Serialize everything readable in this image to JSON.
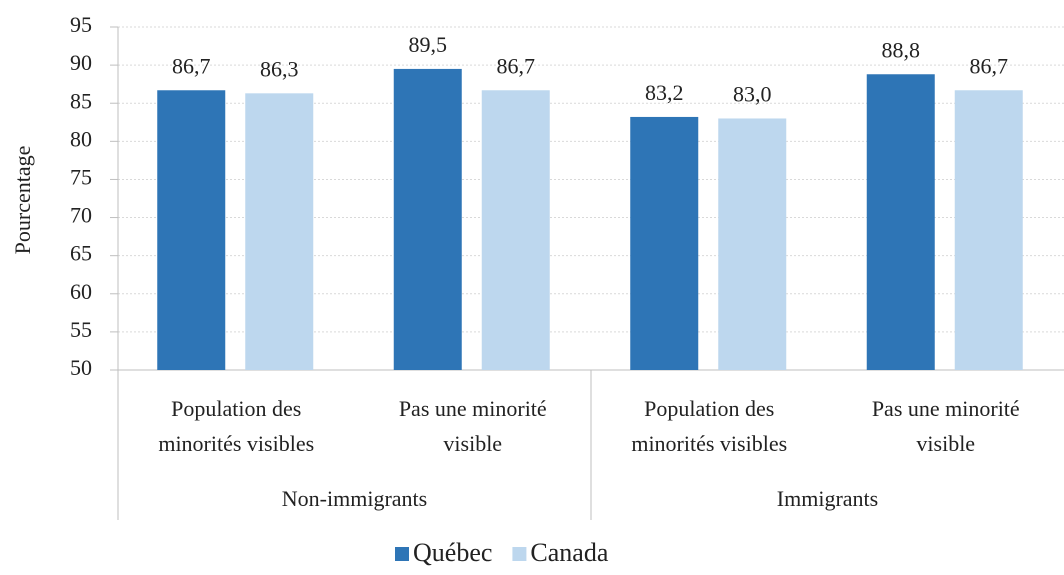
{
  "chart_data": {
    "type": "bar",
    "y_label": "Pourcentage",
    "categories": [
      [
        "Population des",
        "minorités visibles"
      ],
      [
        "Pas une minorité",
        "visible"
      ],
      [
        "Population des",
        "minorités visibles"
      ],
      [
        "Pas une minorité",
        "visible"
      ]
    ],
    "groups": [
      "Non-immigrants",
      "Immigrants"
    ],
    "series": [
      {
        "name": "Québec",
        "color": "#2e75b6",
        "values": [
          86.7,
          89.5,
          83.2,
          88.8
        ],
        "value_labels": [
          "86,7",
          "89,5",
          "83,2",
          "88,8"
        ]
      },
      {
        "name": "Canada",
        "color": "#bdd7ee",
        "values": [
          86.3,
          86.7,
          83.0,
          86.7
        ],
        "value_labels": [
          "86,3",
          "86,7",
          "83,0",
          "86,7"
        ]
      }
    ],
    "ylim": [
      50,
      95
    ],
    "yticks": [
      50,
      55,
      60,
      65,
      70,
      75,
      80,
      85,
      90,
      95
    ],
    "grid": true
  }
}
